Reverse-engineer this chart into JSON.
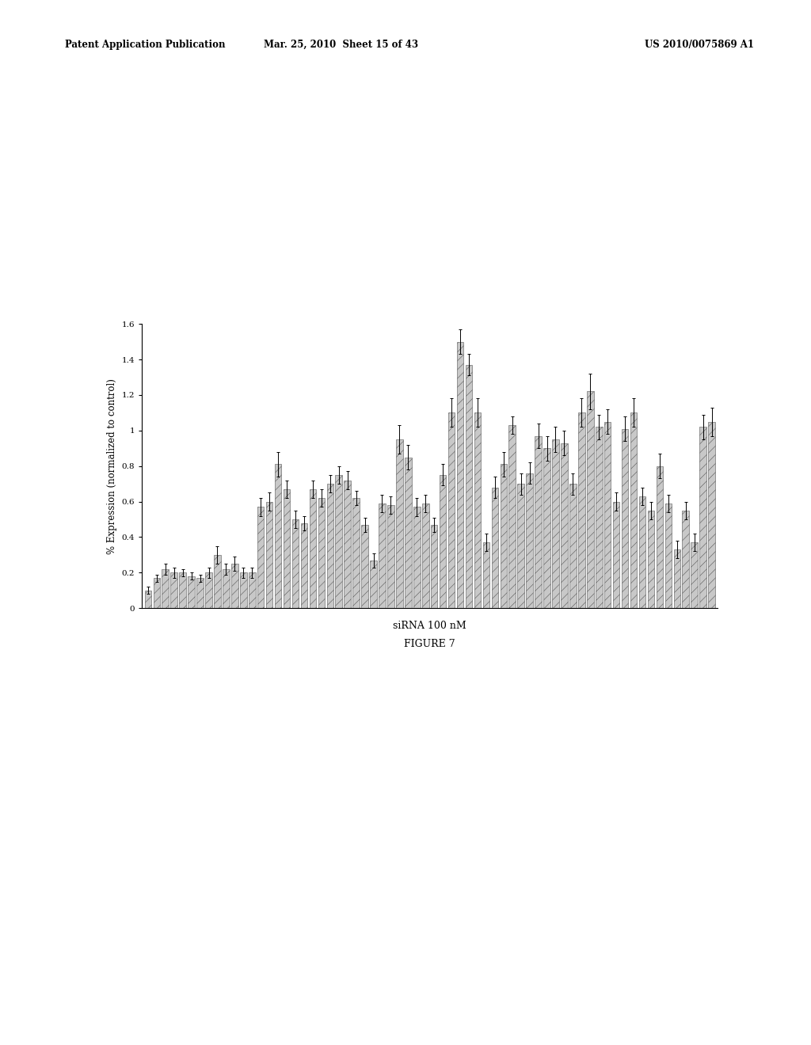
{
  "title": "",
  "xlabel": "siRNA 100 nM",
  "ylabel": "% Expression (normalized to control)",
  "figure_caption": "FIGURE 7",
  "ylim": [
    0,
    1.6
  ],
  "yticks": [
    0,
    0.2,
    0.4,
    0.6,
    0.8,
    1.0,
    1.2,
    1.4,
    1.6
  ],
  "bar_values": [
    0.1,
    0.17,
    0.22,
    0.2,
    0.2,
    0.18,
    0.17,
    0.2,
    0.3,
    0.22,
    0.25,
    0.2,
    0.2,
    0.57,
    0.6,
    0.81,
    0.67,
    0.5,
    0.48,
    0.67,
    0.62,
    0.7,
    0.75,
    0.72,
    0.62,
    0.47,
    0.27,
    0.59,
    0.58,
    0.95,
    0.85,
    0.57,
    0.59,
    0.47,
    0.75,
    1.1,
    1.5,
    1.37,
    1.1,
    0.37,
    0.68,
    0.81,
    1.03,
    0.7,
    0.76,
    0.97,
    0.9,
    0.95,
    0.93,
    0.7,
    1.1,
    1.22,
    1.02,
    1.05,
    0.6,
    1.01,
    1.1,
    0.63,
    0.55,
    0.8,
    0.59,
    0.33,
    0.55,
    0.37,
    1.02,
    1.05
  ],
  "bar_errors": [
    0.02,
    0.02,
    0.03,
    0.03,
    0.02,
    0.02,
    0.02,
    0.03,
    0.05,
    0.03,
    0.04,
    0.03,
    0.03,
    0.05,
    0.05,
    0.07,
    0.05,
    0.05,
    0.04,
    0.05,
    0.05,
    0.05,
    0.05,
    0.05,
    0.04,
    0.04,
    0.04,
    0.05,
    0.05,
    0.08,
    0.07,
    0.05,
    0.05,
    0.04,
    0.06,
    0.08,
    0.07,
    0.06,
    0.08,
    0.05,
    0.06,
    0.07,
    0.05,
    0.06,
    0.06,
    0.07,
    0.07,
    0.07,
    0.07,
    0.06,
    0.08,
    0.1,
    0.07,
    0.07,
    0.05,
    0.07,
    0.08,
    0.05,
    0.05,
    0.07,
    0.05,
    0.05,
    0.05,
    0.05,
    0.07,
    0.08
  ],
  "bar_color": "#c8c8c8",
  "bar_edgecolor": "#555555",
  "hatch": "///",
  "background_color": "#ffffff",
  "header_left": "Patent Application Publication",
  "header_mid": "Mar. 25, 2010  Sheet 15 of 43",
  "header_right": "US 2010/0075869 A1"
}
